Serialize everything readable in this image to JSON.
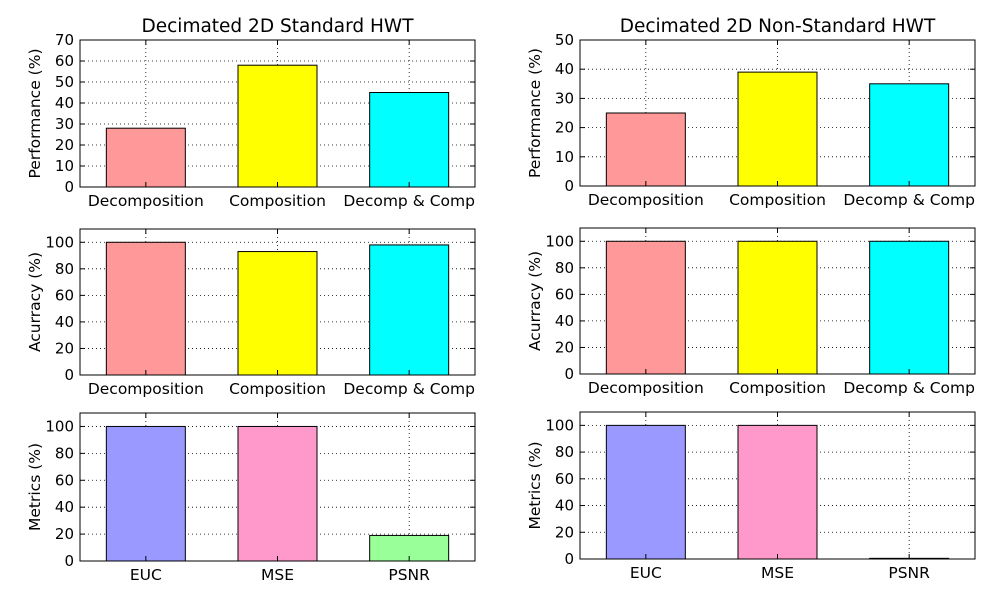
{
  "chart_data": [
    {
      "type": "bar",
      "title": "Decimated 2D Standard HWT",
      "xlabel": "",
      "ylabel": "Performance (%)",
      "categories": [
        "Decomposition",
        "Composition",
        "Decomp & Comp"
      ],
      "values": [
        28,
        58,
        45
      ],
      "colors": [
        "#ff9999",
        "#ffff00",
        "#00ffff"
      ],
      "ylim": [
        0,
        70
      ],
      "yticks": [
        0,
        10,
        20,
        30,
        40,
        50,
        60,
        70
      ],
      "grid": true
    },
    {
      "type": "bar",
      "title": "Decimated 2D Non-Standard HWT",
      "xlabel": "",
      "ylabel": "Performance (%)",
      "categories": [
        "Decomposition",
        "Composition",
        "Decomp & Comp"
      ],
      "values": [
        25,
        39,
        35
      ],
      "colors": [
        "#ff9999",
        "#ffff00",
        "#00ffff"
      ],
      "ylim": [
        0,
        50
      ],
      "yticks": [
        0,
        10,
        20,
        30,
        40,
        50
      ],
      "grid": true
    },
    {
      "type": "bar",
      "title": "",
      "xlabel": "",
      "ylabel": "Acurracy (%)",
      "categories": [
        "Decomposition",
        "Composition",
        "Decomp & Comp"
      ],
      "values": [
        100,
        93,
        98
      ],
      "colors": [
        "#ff9999",
        "#ffff00",
        "#00ffff"
      ],
      "ylim": [
        0,
        110
      ],
      "yticks": [
        0,
        20,
        40,
        60,
        80,
        100
      ],
      "grid": true
    },
    {
      "type": "bar",
      "title": "",
      "xlabel": "",
      "ylabel": "Acurracy (%)",
      "categories": [
        "Decomposition",
        "Composition",
        "Decomp & Comp"
      ],
      "values": [
        100,
        100,
        100
      ],
      "colors": [
        "#ff9999",
        "#ffff00",
        "#00ffff"
      ],
      "ylim": [
        0,
        110
      ],
      "yticks": [
        0,
        20,
        40,
        60,
        80,
        100
      ],
      "grid": true
    },
    {
      "type": "bar",
      "title": "",
      "xlabel": "",
      "ylabel": "Metrics (%)",
      "categories": [
        "EUC",
        "MSE",
        "PSNR"
      ],
      "values": [
        100,
        100,
        19
      ],
      "colors": [
        "#9999ff",
        "#ff99cc",
        "#99ff99"
      ],
      "ylim": [
        0,
        110
      ],
      "yticks": [
        0,
        20,
        40,
        60,
        80,
        100
      ],
      "grid": true
    },
    {
      "type": "bar",
      "title": "",
      "xlabel": "",
      "ylabel": "Metrics (%)",
      "categories": [
        "EUC",
        "MSE",
        "PSNR"
      ],
      "values": [
        100,
        100,
        0.5
      ],
      "colors": [
        "#9999ff",
        "#ff99cc",
        "#99ff99"
      ],
      "ylim": [
        0,
        110
      ],
      "yticks": [
        0,
        20,
        40,
        60,
        80,
        100
      ],
      "grid": true
    }
  ]
}
